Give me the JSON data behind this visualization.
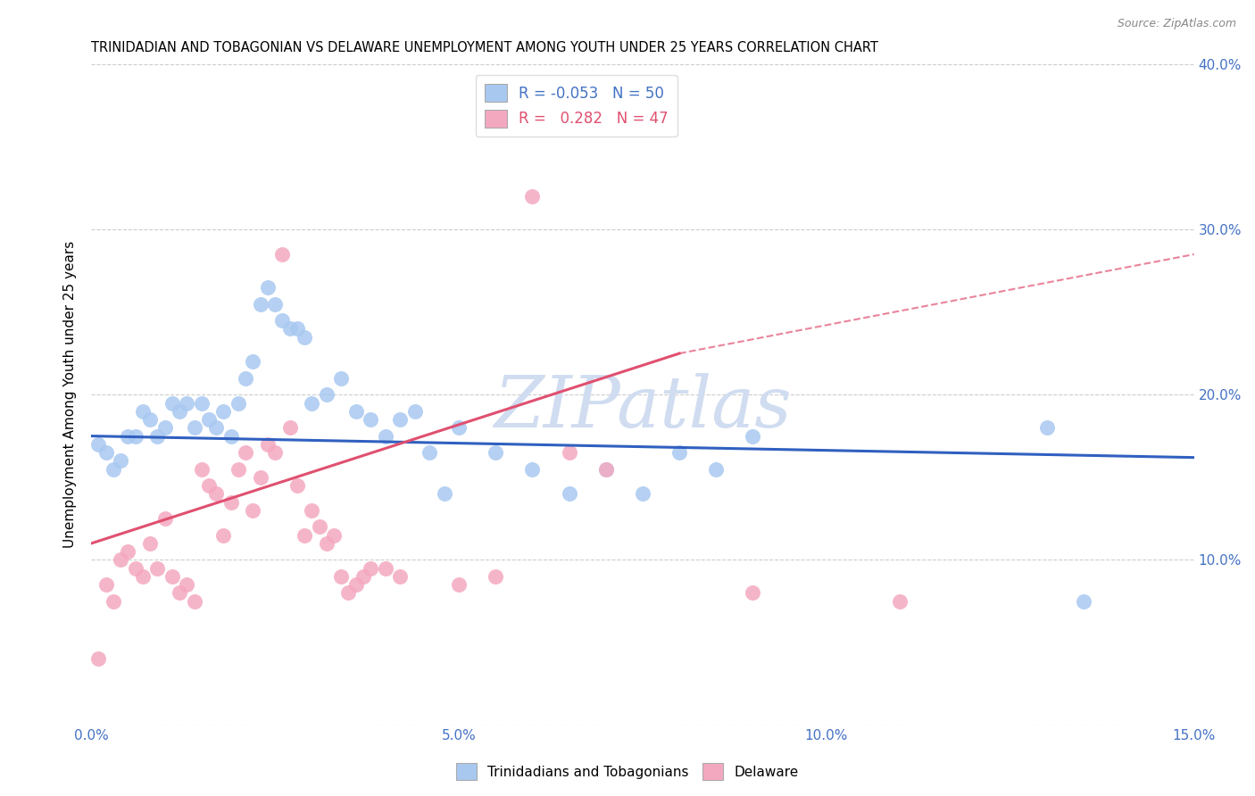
{
  "title": "TRINIDADIAN AND TOBAGONIAN VS DELAWARE UNEMPLOYMENT AMONG YOUTH UNDER 25 YEARS CORRELATION CHART",
  "source": "Source: ZipAtlas.com",
  "ylabel": "Unemployment Among Youth under 25 years",
  "xlim": [
    0,
    0.15
  ],
  "ylim": [
    0,
    0.4
  ],
  "legend_r_blue": "-0.053",
  "legend_n_blue": "50",
  "legend_r_pink": "0.282",
  "legend_n_pink": "47",
  "blue_color": "#A8C8F0",
  "pink_color": "#F4A8C0",
  "blue_line_color": "#3060C0",
  "pink_line_color": "#E05070",
  "watermark": "ZIPatlas",
  "blue_scatter": [
    [
      0.001,
      0.17
    ],
    [
      0.002,
      0.165
    ],
    [
      0.003,
      0.155
    ],
    [
      0.004,
      0.16
    ],
    [
      0.005,
      0.175
    ],
    [
      0.006,
      0.175
    ],
    [
      0.007,
      0.19
    ],
    [
      0.008,
      0.185
    ],
    [
      0.009,
      0.175
    ],
    [
      0.01,
      0.18
    ],
    [
      0.011,
      0.195
    ],
    [
      0.012,
      0.19
    ],
    [
      0.013,
      0.195
    ],
    [
      0.014,
      0.18
    ],
    [
      0.015,
      0.195
    ],
    [
      0.016,
      0.185
    ],
    [
      0.017,
      0.18
    ],
    [
      0.018,
      0.19
    ],
    [
      0.019,
      0.175
    ],
    [
      0.02,
      0.195
    ],
    [
      0.021,
      0.21
    ],
    [
      0.022,
      0.22
    ],
    [
      0.023,
      0.255
    ],
    [
      0.024,
      0.265
    ],
    [
      0.025,
      0.255
    ],
    [
      0.026,
      0.245
    ],
    [
      0.027,
      0.24
    ],
    [
      0.028,
      0.24
    ],
    [
      0.029,
      0.235
    ],
    [
      0.03,
      0.195
    ],
    [
      0.032,
      0.2
    ],
    [
      0.034,
      0.21
    ],
    [
      0.036,
      0.19
    ],
    [
      0.038,
      0.185
    ],
    [
      0.04,
      0.175
    ],
    [
      0.042,
      0.185
    ],
    [
      0.044,
      0.19
    ],
    [
      0.046,
      0.165
    ],
    [
      0.048,
      0.14
    ],
    [
      0.05,
      0.18
    ],
    [
      0.055,
      0.165
    ],
    [
      0.06,
      0.155
    ],
    [
      0.065,
      0.14
    ],
    [
      0.07,
      0.155
    ],
    [
      0.075,
      0.14
    ],
    [
      0.08,
      0.165
    ],
    [
      0.085,
      0.155
    ],
    [
      0.09,
      0.175
    ],
    [
      0.13,
      0.18
    ],
    [
      0.135,
      0.075
    ]
  ],
  "pink_scatter": [
    [
      0.001,
      0.04
    ],
    [
      0.002,
      0.085
    ],
    [
      0.003,
      0.075
    ],
    [
      0.004,
      0.1
    ],
    [
      0.005,
      0.105
    ],
    [
      0.006,
      0.095
    ],
    [
      0.007,
      0.09
    ],
    [
      0.008,
      0.11
    ],
    [
      0.009,
      0.095
    ],
    [
      0.01,
      0.125
    ],
    [
      0.011,
      0.09
    ],
    [
      0.012,
      0.08
    ],
    [
      0.013,
      0.085
    ],
    [
      0.014,
      0.075
    ],
    [
      0.015,
      0.155
    ],
    [
      0.016,
      0.145
    ],
    [
      0.017,
      0.14
    ],
    [
      0.018,
      0.115
    ],
    [
      0.019,
      0.135
    ],
    [
      0.02,
      0.155
    ],
    [
      0.021,
      0.165
    ],
    [
      0.022,
      0.13
    ],
    [
      0.023,
      0.15
    ],
    [
      0.024,
      0.17
    ],
    [
      0.025,
      0.165
    ],
    [
      0.026,
      0.285
    ],
    [
      0.027,
      0.18
    ],
    [
      0.028,
      0.145
    ],
    [
      0.029,
      0.115
    ],
    [
      0.03,
      0.13
    ],
    [
      0.031,
      0.12
    ],
    [
      0.032,
      0.11
    ],
    [
      0.033,
      0.115
    ],
    [
      0.034,
      0.09
    ],
    [
      0.035,
      0.08
    ],
    [
      0.036,
      0.085
    ],
    [
      0.037,
      0.09
    ],
    [
      0.038,
      0.095
    ],
    [
      0.04,
      0.095
    ],
    [
      0.042,
      0.09
    ],
    [
      0.05,
      0.085
    ],
    [
      0.055,
      0.09
    ],
    [
      0.06,
      0.32
    ],
    [
      0.065,
      0.165
    ],
    [
      0.07,
      0.155
    ],
    [
      0.09,
      0.08
    ],
    [
      0.11,
      0.075
    ]
  ],
  "blue_trend": [
    0.0,
    0.15,
    0.175,
    0.162
  ],
  "pink_trend_solid": [
    0.0,
    0.08,
    0.11,
    0.225
  ],
  "pink_trend_dashed": [
    0.08,
    0.15,
    0.225,
    0.285
  ]
}
